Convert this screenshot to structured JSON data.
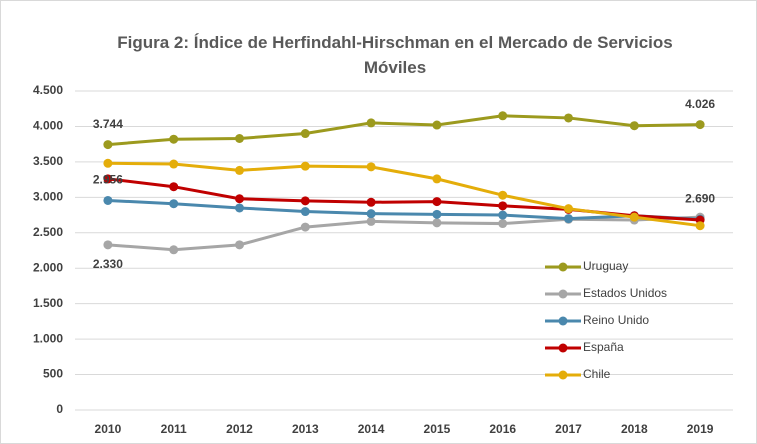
{
  "chart_data": {
    "type": "line",
    "title": "Figura 2: Índice de Herfindahl-Hirschman en el Mercado de Servicios Móviles",
    "categories": [
      "2010",
      "2011",
      "2012",
      "2013",
      "2014",
      "2015",
      "2016",
      "2017",
      "2018",
      "2019"
    ],
    "ylim": [
      0,
      4500
    ],
    "yticks": [
      0,
      500,
      {
        "value": 1000,
        "label": "1.000"
      },
      {
        "value": 1500,
        "label": "1.500"
      },
      {
        "value": 2000,
        "label": "2.000"
      },
      {
        "value": 2500,
        "label": "2.500"
      },
      {
        "value": 3000,
        "label": "3.000"
      },
      {
        "value": 3500,
        "label": "3.500"
      },
      {
        "value": 4000,
        "label": "4.000"
      },
      {
        "value": 4500,
        "label": "4.500"
      }
    ],
    "grid": true,
    "legend": "lower right",
    "series": [
      {
        "name": "Uruguay",
        "color": "#9c9a1e",
        "values": [
          3744,
          3820,
          3830,
          3900,
          4050,
          4020,
          4150,
          4120,
          4010,
          4026
        ],
        "value_labels": [
          "3.744",
          null,
          null,
          null,
          null,
          null,
          null,
          null,
          null,
          "4.026"
        ]
      },
      {
        "name": "Estados Unidos",
        "color": "#a6a6a6",
        "values": [
          2330,
          2260,
          2330,
          2580,
          2660,
          2640,
          2630,
          2690,
          2680,
          2720
        ],
        "value_labels": [
          "2.330",
          null,
          null,
          null,
          null,
          null,
          null,
          null,
          null,
          null
        ]
      },
      {
        "name": "Reino Unido",
        "color": "#4a88ad",
        "values": [
          2956,
          2910,
          2850,
          2800,
          2770,
          2760,
          2750,
          2700,
          2740,
          2690
        ],
        "value_labels": [
          "2.956",
          null,
          null,
          null,
          null,
          null,
          null,
          null,
          null,
          "2.690"
        ]
      },
      {
        "name": "España",
        "color": "#c00000",
        "values": [
          3260,
          3150,
          2980,
          2950,
          2930,
          2940,
          2880,
          2830,
          2740,
          2680
        ]
      },
      {
        "name": "Chile",
        "color": "#e4ad0a",
        "values": [
          3480,
          3470,
          3380,
          3440,
          3430,
          3260,
          3030,
          2840,
          2720,
          2600
        ]
      }
    ]
  }
}
